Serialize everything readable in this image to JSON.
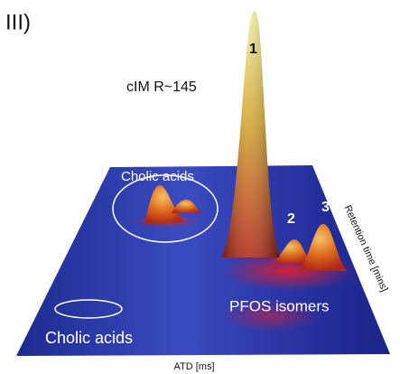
{
  "panel_label": "III)",
  "resolution_label": "cIM R~145",
  "annotations": {
    "cholic_acids_top": "Cholic acids",
    "cholic_acids_bottom": "Cholic acids",
    "pfos": "PFOS isomers"
  },
  "peaks": {
    "p1": "1",
    "p2": "2",
    "p3": "3"
  },
  "axes": {
    "x_label": "ATD [ms]",
    "depth_label": "Retention time [mins]"
  }
}
